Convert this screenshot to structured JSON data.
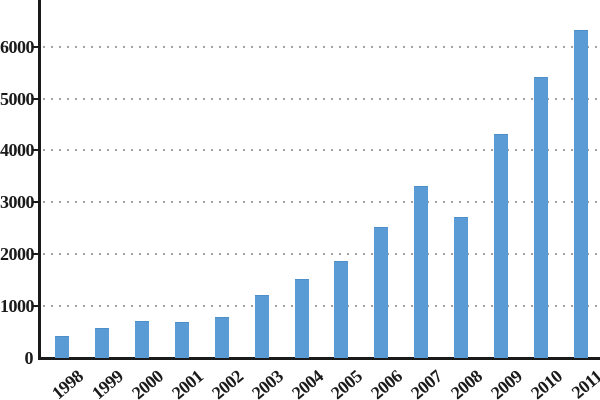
{
  "chart_data": {
    "type": "bar",
    "title": "",
    "xlabel": "",
    "ylabel": "",
    "categories": [
      "1998",
      "1999",
      "2000",
      "2001",
      "2002",
      "2003",
      "2004",
      "2005",
      "2006",
      "2007",
      "2008",
      "2009",
      "2010",
      "2011"
    ],
    "values": [
      400,
      550,
      700,
      680,
      780,
      1200,
      1500,
      1850,
      2500,
      3300,
      2700,
      4300,
      5400,
      6300
    ],
    "yticks": [
      0,
      1000,
      2000,
      3000,
      4000,
      5000,
      6000
    ],
    "ylim": [
      0,
      6900
    ],
    "grid": "horizontal-dotted",
    "legend": "none",
    "colors": {
      "bar": "#5B9BD5",
      "gridline": "#A3A3A3",
      "axis": "#1A1A1A",
      "label": "#1A1A1A",
      "background": "#FFFFFF"
    }
  }
}
